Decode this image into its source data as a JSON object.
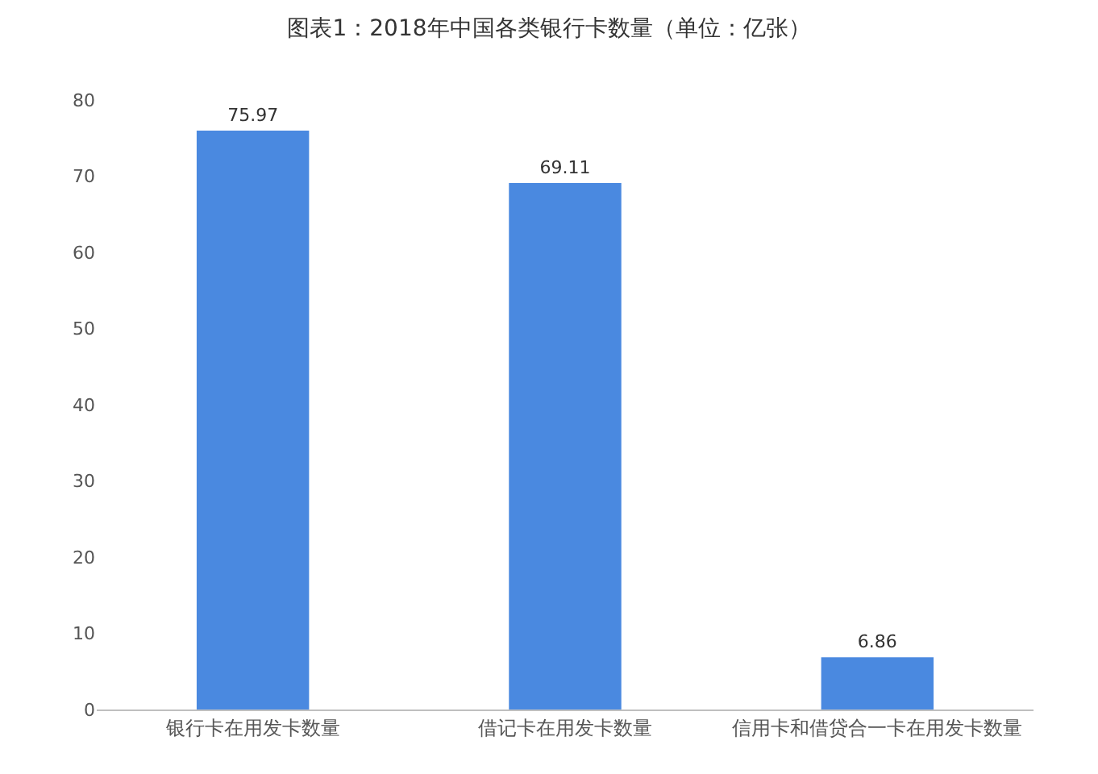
{
  "chart_data": {
    "type": "bar",
    "title": "图表1：2018年中国各类银行卡数量（单位：亿张）",
    "categories": [
      "银行卡在用发卡数量",
      "借记卡在用发卡数量",
      "信用卡和借贷合一卡在用发卡数量"
    ],
    "values": [
      75.97,
      69.11,
      6.86
    ],
    "color": "#4a89e0",
    "ylim": [
      0,
      80
    ],
    "yticks": [
      0,
      10,
      20,
      30,
      40,
      50,
      60,
      70,
      80
    ],
    "grid": false,
    "data_labels": true
  }
}
